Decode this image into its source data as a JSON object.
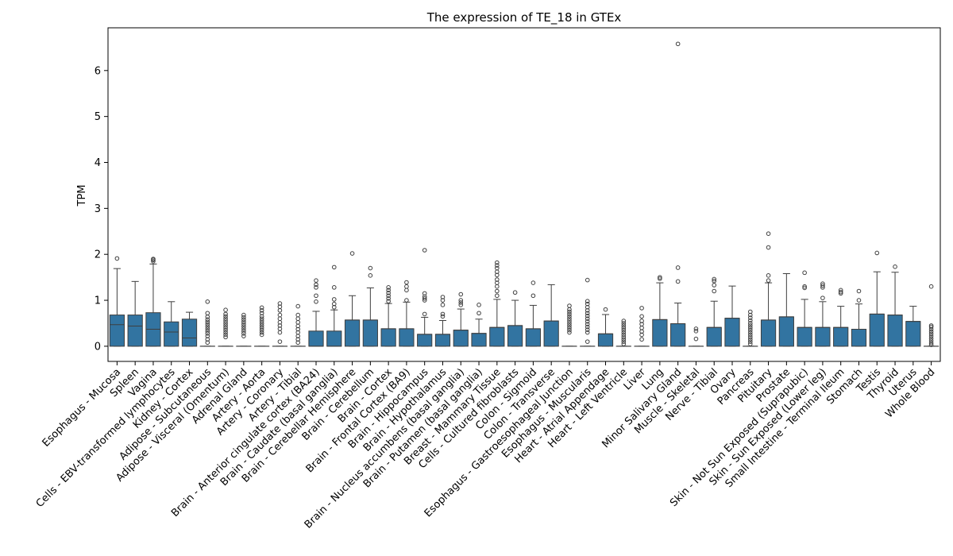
{
  "chart_data": {
    "type": "box",
    "title": "The expression of TE_18 in GTEx",
    "xlabel": "",
    "ylabel": "TPM",
    "ylim": [
      -0.33,
      6.93
    ],
    "yticks": [
      0,
      1,
      2,
      3,
      4,
      5,
      6
    ],
    "grid": false,
    "legend": "none",
    "box_color": "#3274a1",
    "categories": [
      "Esophagus - Mucosa",
      "Spleen",
      "Vagina",
      "Cells - EBV-transformed lymphocytes",
      "Kidney - Cortex",
      "Adipose - Subcutaneous",
      "Adipose - Visceral (Omentum)",
      "Adrenal Gland",
      "Artery - Aorta",
      "Artery - Coronary",
      "Artery - Tibial",
      "Brain - Anterior cingulate cortex (BA24)",
      "Brain - Caudate (basal ganglia)",
      "Brain - Cerebellar Hemisphere",
      "Brain - Cerebellum",
      "Brain - Cortex",
      "Brain - Frontal Cortex (BA9)",
      "Brain - Hippocampus",
      "Brain - Hypothalamus",
      "Brain - Nucleus accumbens (basal ganglia)",
      "Brain - Putamen (basal ganglia)",
      "Breast - Mammary Tissue",
      "Cells - Cultured fibroblasts",
      "Colon - Sigmoid",
      "Colon - Transverse",
      "Esophagus - Gastroesophageal Junction",
      "Esophagus - Muscularis",
      "Heart - Atrial Appendage",
      "Heart - Left Ventricle",
      "Liver",
      "Lung",
      "Minor Salivary Gland",
      "Muscle - Skeletal",
      "Nerve - Tibial",
      "Ovary",
      "Pancreas",
      "Pituitary",
      "Prostate",
      "Skin - Not Sun Exposed (Suprapubic)",
      "Skin - Sun Exposed (Lower leg)",
      "Small Intestine - Terminal Ileum",
      "Stomach",
      "Testis",
      "Thyroid",
      "Uterus",
      "Whole Blood"
    ],
    "boxes": [
      {
        "q1": 0,
        "median": 0.47,
        "q3": 0.68,
        "whisker_low": 0,
        "whisker_high": 1.69,
        "outliers": [
          1.91
        ]
      },
      {
        "q1": 0,
        "median": 0.44,
        "q3": 0.68,
        "whisker_low": 0,
        "whisker_high": 1.41,
        "outliers": []
      },
      {
        "q1": 0,
        "median": 0.37,
        "q3": 0.73,
        "whisker_low": 0,
        "whisker_high": 1.79,
        "outliers": [
          1.85,
          1.88,
          1.9
        ]
      },
      {
        "q1": 0,
        "median": 0.31,
        "q3": 0.53,
        "whisker_low": 0,
        "whisker_high": 0.97,
        "outliers": []
      },
      {
        "q1": 0,
        "median": 0.18,
        "q3": 0.59,
        "whisker_low": 0,
        "whisker_high": 0.74,
        "outliers": []
      },
      {
        "q1": 0,
        "median": 0,
        "q3": 0,
        "whisker_low": 0,
        "whisker_high": 0,
        "outliers": [
          0.08,
          0.15,
          0.22,
          0.28,
          0.33,
          0.38,
          0.43,
          0.48,
          0.53,
          0.58,
          0.64,
          0.72,
          0.97
        ]
      },
      {
        "q1": 0,
        "median": 0,
        "q3": 0,
        "whisker_low": 0,
        "whisker_high": 0,
        "outliers": [
          0.2,
          0.25,
          0.3,
          0.35,
          0.4,
          0.45,
          0.5,
          0.55,
          0.6,
          0.65,
          0.7,
          0.79
        ]
      },
      {
        "q1": 0,
        "median": 0,
        "q3": 0,
        "whisker_low": 0,
        "whisker_high": 0,
        "outliers": [
          0.22,
          0.28,
          0.33,
          0.38,
          0.43,
          0.48,
          0.53,
          0.58,
          0.63,
          0.68
        ]
      },
      {
        "q1": 0,
        "median": 0,
        "q3": 0,
        "whisker_low": 0,
        "whisker_high": 0,
        "outliers": [
          0.25,
          0.3,
          0.35,
          0.4,
          0.45,
          0.5,
          0.55,
          0.6,
          0.65,
          0.72,
          0.78,
          0.84
        ]
      },
      {
        "q1": 0,
        "median": 0,
        "q3": 0,
        "whisker_low": 0,
        "whisker_high": 0,
        "outliers": [
          0.1,
          0.3,
          0.38,
          0.45,
          0.52,
          0.6,
          0.68,
          0.78,
          0.86,
          0.93
        ]
      },
      {
        "q1": 0,
        "median": 0,
        "q3": 0,
        "whisker_low": 0,
        "whisker_high": 0,
        "outliers": [
          0.08,
          0.15,
          0.22,
          0.3,
          0.37,
          0.44,
          0.52,
          0.6,
          0.68,
          0.87
        ]
      },
      {
        "q1": 0,
        "median": 0,
        "q3": 0.33,
        "whisker_low": 0,
        "whisker_high": 0.76,
        "outliers": [
          0.97,
          1.1,
          1.28,
          1.34,
          1.43
        ]
      },
      {
        "q1": 0,
        "median": 0,
        "q3": 0.33,
        "whisker_low": 0,
        "whisker_high": 0.79,
        "outliers": [
          0.85,
          0.92,
          1.02,
          1.28,
          1.72
        ]
      },
      {
        "q1": 0,
        "median": 0.57,
        "q3": 0.57,
        "whisker_low": 0,
        "whisker_high": 1.1,
        "outliers": [
          2.02
        ]
      },
      {
        "q1": 0,
        "median": 0.57,
        "q3": 0.57,
        "whisker_low": 0,
        "whisker_high": 1.27,
        "outliers": [
          1.54,
          1.7
        ]
      },
      {
        "q1": 0,
        "median": 0.38,
        "q3": 0.38,
        "whisker_low": 0,
        "whisker_high": 0.93,
        "outliers": [
          0.98,
          1.04,
          1.1,
          1.16,
          1.22,
          1.28
        ]
      },
      {
        "q1": 0,
        "median": 0.38,
        "q3": 0.38,
        "whisker_low": 0,
        "whisker_high": 0.96,
        "outliers": [
          1.0,
          1.22,
          1.3,
          1.39
        ]
      },
      {
        "q1": 0,
        "median": 0.26,
        "q3": 0.26,
        "whisker_low": 0,
        "whisker_high": 0.63,
        "outliers": [
          0.7,
          1.0,
          1.04,
          1.08,
          1.15,
          2.09
        ]
      },
      {
        "q1": 0,
        "median": 0.26,
        "q3": 0.26,
        "whisker_low": 0,
        "whisker_high": 0.56,
        "outliers": [
          0.65,
          0.7,
          0.9,
          1.0,
          1.07
        ]
      },
      {
        "q1": 0,
        "median": 0.35,
        "q3": 0.35,
        "whisker_low": 0,
        "whisker_high": 0.81,
        "outliers": [
          0.9,
          0.95,
          1.0,
          1.13
        ]
      },
      {
        "q1": 0,
        "median": 0.28,
        "q3": 0.28,
        "whisker_low": 0,
        "whisker_high": 0.59,
        "outliers": [
          0.72,
          0.9
        ]
      },
      {
        "q1": 0,
        "median": 0.41,
        "q3": 0.41,
        "whisker_low": 0,
        "whisker_high": 1.02,
        "outliers": [
          1.1,
          1.2,
          1.3,
          1.38,
          1.45,
          1.55,
          1.62,
          1.7,
          1.76,
          1.82
        ]
      },
      {
        "q1": 0,
        "median": 0.45,
        "q3": 0.45,
        "whisker_low": 0,
        "whisker_high": 1.0,
        "outliers": [
          1.17
        ]
      },
      {
        "q1": 0,
        "median": 0.38,
        "q3": 0.38,
        "whisker_low": 0,
        "whisker_high": 0.89,
        "outliers": [
          1.1,
          1.38
        ]
      },
      {
        "q1": 0,
        "median": 0.55,
        "q3": 0.55,
        "whisker_low": 0,
        "whisker_high": 1.34,
        "outliers": []
      },
      {
        "q1": 0,
        "median": 0,
        "q3": 0,
        "whisker_low": 0,
        "whisker_high": 0,
        "outliers": [
          0.3,
          0.35,
          0.4,
          0.45,
          0.5,
          0.55,
          0.6,
          0.65,
          0.7,
          0.75,
          0.8,
          0.88
        ]
      },
      {
        "q1": 0,
        "median": 0,
        "q3": 0,
        "whisker_low": 0,
        "whisker_high": 0,
        "outliers": [
          0.1,
          0.3,
          0.36,
          0.42,
          0.48,
          0.54,
          0.6,
          0.66,
          0.72,
          0.78,
          0.85,
          0.92,
          0.98,
          1.44
        ]
      },
      {
        "q1": 0,
        "median": 0.27,
        "q3": 0.27,
        "whisker_low": 0,
        "whisker_high": 0.69,
        "outliers": [
          0.8
        ]
      },
      {
        "q1": 0,
        "median": 0,
        "q3": 0,
        "whisker_low": 0,
        "whisker_high": 0,
        "outliers": [
          0.05,
          0.1,
          0.15,
          0.2,
          0.25,
          0.3,
          0.35,
          0.4,
          0.45,
          0.5,
          0.55
        ]
      },
      {
        "q1": 0,
        "median": 0,
        "q3": 0,
        "whisker_low": 0,
        "whisker_high": 0,
        "outliers": [
          0.15,
          0.25,
          0.32,
          0.4,
          0.48,
          0.55,
          0.65,
          0.83
        ]
      },
      {
        "q1": 0,
        "median": 0.58,
        "q3": 0.58,
        "whisker_low": 0,
        "whisker_high": 1.38,
        "outliers": [
          1.47,
          1.5
        ]
      },
      {
        "q1": 0,
        "median": 0.49,
        "q3": 0.49,
        "whisker_low": 0,
        "whisker_high": 0.94,
        "outliers": [
          1.41,
          1.71,
          6.58
        ]
      },
      {
        "q1": 0,
        "median": 0,
        "q3": 0,
        "whisker_low": 0,
        "whisker_high": 0,
        "outliers": [
          0.16,
          0.33,
          0.38
        ]
      },
      {
        "q1": 0,
        "median": 0.41,
        "q3": 0.41,
        "whisker_low": 0,
        "whisker_high": 0.98,
        "outliers": [
          1.2,
          1.33,
          1.42,
          1.46
        ]
      },
      {
        "q1": 0,
        "median": 0.61,
        "q3": 0.61,
        "whisker_low": 0,
        "whisker_high": 1.31,
        "outliers": []
      },
      {
        "q1": 0,
        "median": 0,
        "q3": 0,
        "whisker_low": 0,
        "whisker_high": 0,
        "outliers": [
          0.05,
          0.1,
          0.15,
          0.2,
          0.25,
          0.3,
          0.35,
          0.4,
          0.45,
          0.5,
          0.56,
          0.62,
          0.68,
          0.75
        ]
      },
      {
        "q1": 0,
        "median": 0.57,
        "q3": 0.57,
        "whisker_low": 0,
        "whisker_high": 1.38,
        "outliers": [
          1.43,
          1.54,
          2.15,
          2.45
        ]
      },
      {
        "q1": 0,
        "median": 0.64,
        "q3": 0.64,
        "whisker_low": 0,
        "whisker_high": 1.58,
        "outliers": []
      },
      {
        "q1": 0,
        "median": 0.41,
        "q3": 0.41,
        "whisker_low": 0,
        "whisker_high": 1.02,
        "outliers": [
          1.27,
          1.3,
          1.6
        ]
      },
      {
        "q1": 0,
        "median": 0.41,
        "q3": 0.41,
        "whisker_low": 0,
        "whisker_high": 0.97,
        "outliers": [
          1.05,
          1.28,
          1.32,
          1.36
        ]
      },
      {
        "q1": 0,
        "median": 0.41,
        "q3": 0.41,
        "whisker_low": 0,
        "whisker_high": 0.87,
        "outliers": [
          1.15,
          1.18,
          1.22
        ]
      },
      {
        "q1": 0,
        "median": 0.37,
        "q3": 0.37,
        "whisker_low": 0,
        "whisker_high": 0.92,
        "outliers": [
          1.0,
          1.2
        ]
      },
      {
        "q1": 0,
        "median": 0.7,
        "q3": 0.7,
        "whisker_low": 0,
        "whisker_high": 1.62,
        "outliers": [
          2.03
        ]
      },
      {
        "q1": 0,
        "median": 0.68,
        "q3": 0.68,
        "whisker_low": 0,
        "whisker_high": 1.61,
        "outliers": [
          1.73
        ]
      },
      {
        "q1": 0,
        "median": 0.54,
        "q3": 0.54,
        "whisker_low": 0,
        "whisker_high": 0.87,
        "outliers": []
      },
      {
        "q1": 0,
        "median": 0,
        "q3": 0,
        "whisker_low": 0,
        "whisker_high": 0,
        "outliers": [
          0.03,
          0.07,
          0.12,
          0.17,
          0.22,
          0.27,
          0.32,
          0.37,
          0.42,
          0.45,
          1.3
        ]
      }
    ]
  }
}
